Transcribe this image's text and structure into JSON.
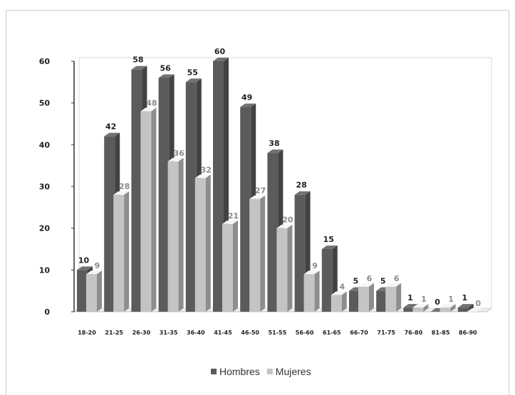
{
  "chart_data": {
    "type": "bar",
    "categories": [
      "18-20",
      "21-25",
      "26-30",
      "31-35",
      "36-40",
      "41-45",
      "46-50",
      "51-55",
      "56-60",
      "61-65",
      "66-70",
      "71-75",
      "76-80",
      "81-85",
      "86-90"
    ],
    "series": [
      {
        "name": "Hombres",
        "values": [
          10,
          42,
          58,
          56,
          55,
          60,
          49,
          38,
          28,
          15,
          5,
          5,
          1,
          0,
          1
        ],
        "color": "#5b5b5b"
      },
      {
        "name": "Mujeres",
        "values": [
          9,
          28,
          48,
          36,
          32,
          21,
          27,
          20,
          9,
          4,
          6,
          6,
          1,
          1,
          0
        ],
        "color": "#c4c4c4"
      }
    ],
    "yticks": [
      0,
      10,
      20,
      30,
      40,
      50,
      60
    ],
    "ylim": [
      0,
      60
    ],
    "grid": false,
    "legend_position": "bottom-center",
    "three_d": true
  }
}
